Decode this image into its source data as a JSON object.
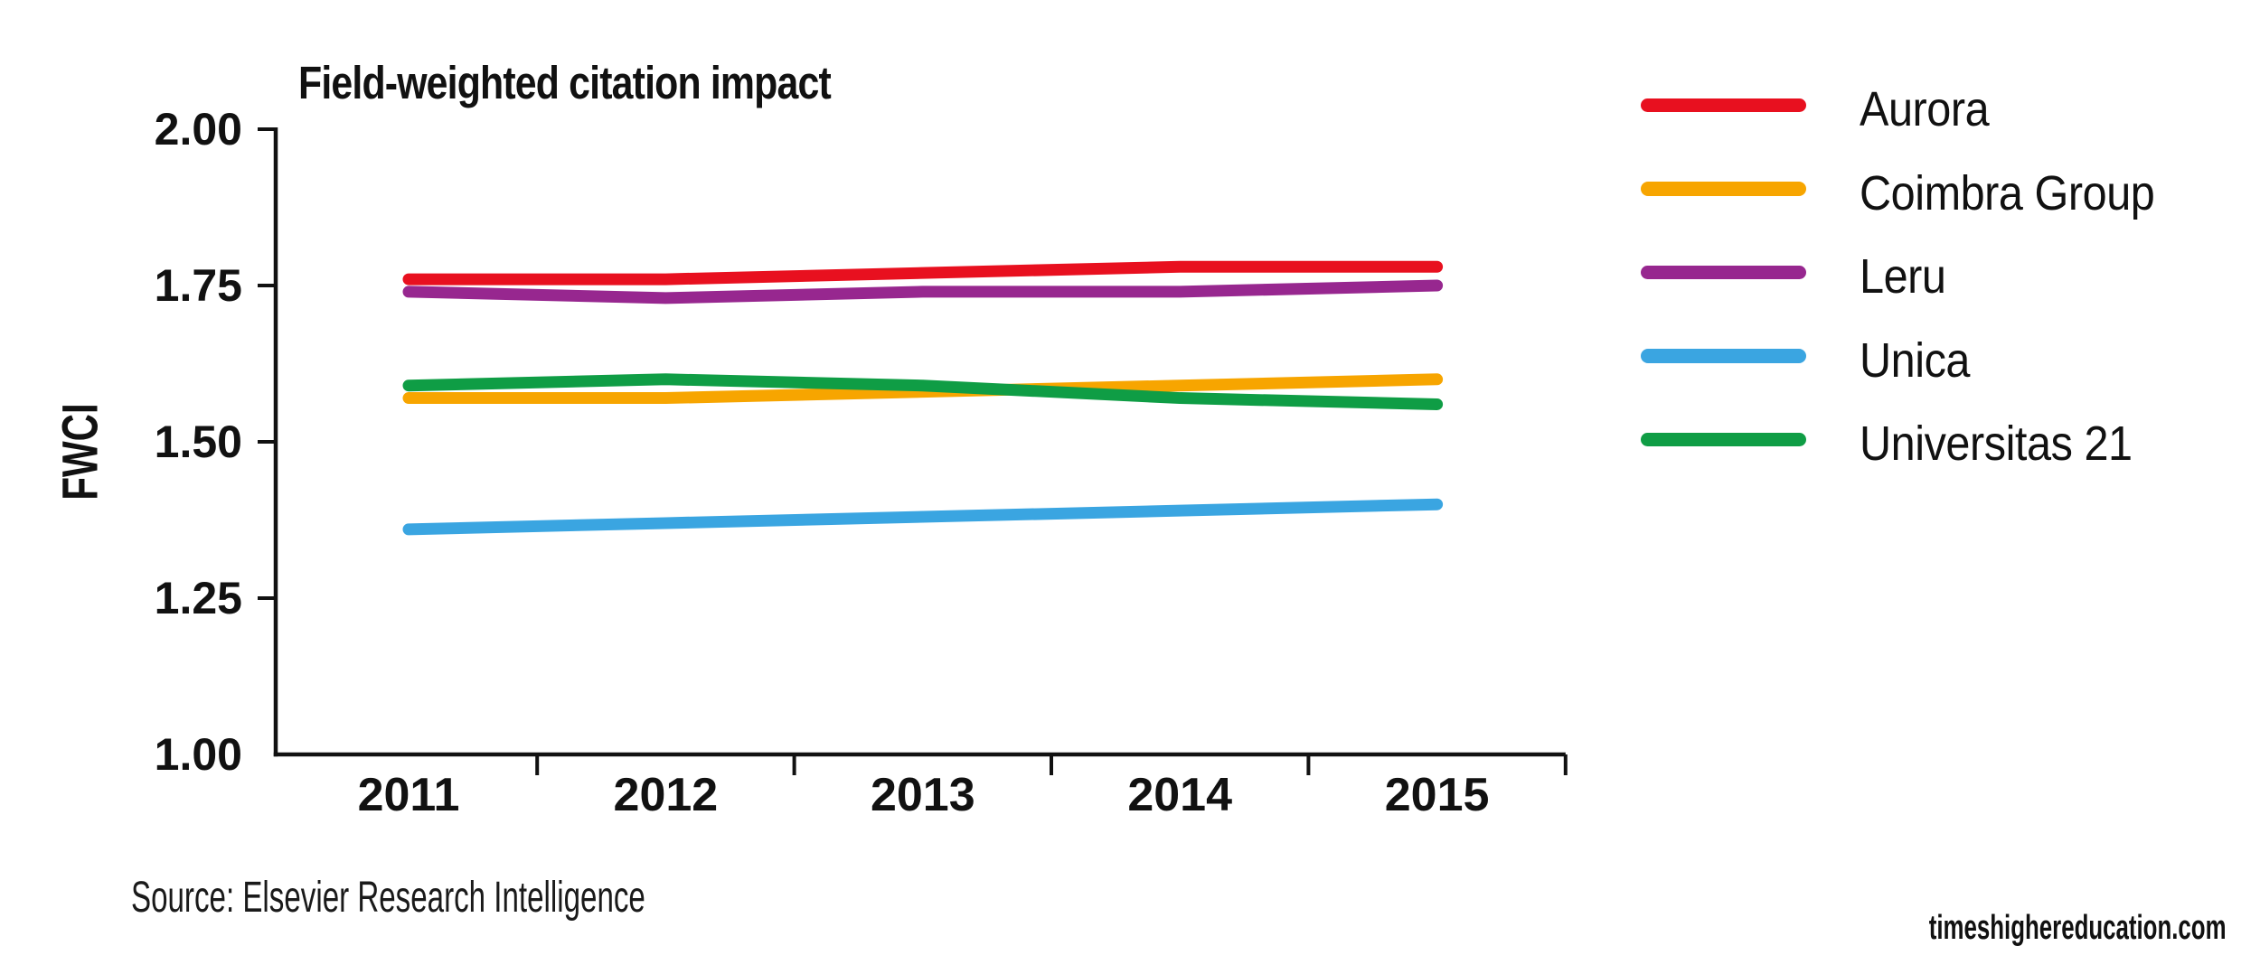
{
  "page": {
    "background": "#ffffff",
    "text_color": "#111111",
    "source": "Source: Elsevier Research Intelligence",
    "site": "timeshighereducation.com"
  },
  "chart_data": {
    "type": "line",
    "title": "Field-weighted citation impact",
    "xlabel": "",
    "ylabel": "FWCI",
    "x": [
      2011,
      2012,
      2013,
      2014,
      2015
    ],
    "ylim": [
      1.0,
      2.0
    ],
    "yticks": [
      1.0,
      1.25,
      1.5,
      1.75,
      2.0
    ],
    "ytick_labels": [
      "1.00",
      "1.25",
      "1.50",
      "1.75",
      "2.00"
    ],
    "grid": false,
    "legend_position": "right",
    "axis_color": "#111111",
    "series": [
      {
        "name": "Aurora",
        "color": "#e8101f",
        "values": [
          1.76,
          1.76,
          1.77,
          1.78,
          1.78
        ]
      },
      {
        "name": "Coimbra Group",
        "color": "#f7a500",
        "values": [
          1.57,
          1.57,
          1.58,
          1.59,
          1.6
        ]
      },
      {
        "name": "Leru",
        "color": "#97278f",
        "values": [
          1.74,
          1.73,
          1.74,
          1.74,
          1.75
        ]
      },
      {
        "name": "Unica",
        "color": "#3aa5e1",
        "values": [
          1.36,
          1.37,
          1.38,
          1.39,
          1.4
        ]
      },
      {
        "name": "Universitas 21",
        "color": "#0f9d45",
        "values": [
          1.59,
          1.6,
          1.59,
          1.57,
          1.56
        ]
      }
    ]
  }
}
